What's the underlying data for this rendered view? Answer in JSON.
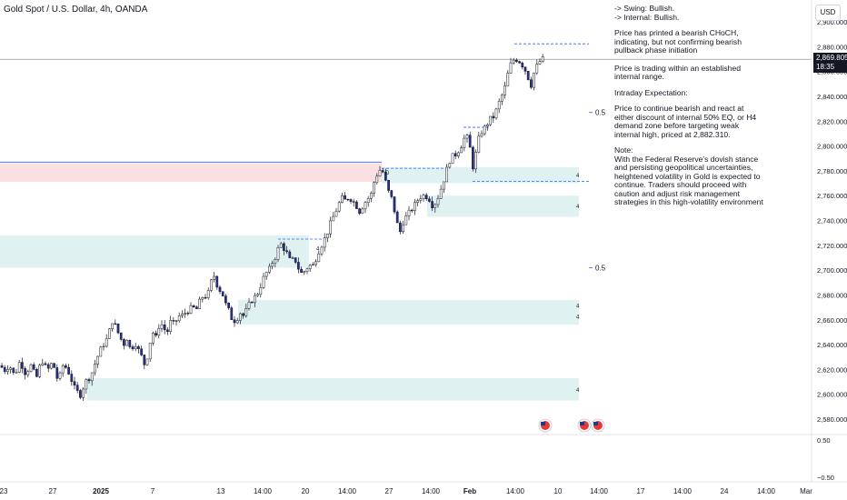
{
  "header": {
    "title": "Gold Spot / U.S. Dollar, 4h, OANDA",
    "currency_button": "USD"
  },
  "price_tag": {
    "price": "2,869.805",
    "countdown": "18:35"
  },
  "notes": {
    "swing": "-> Swing:  Bullish.",
    "internal": "-> Internal:  Bullish.",
    "p1": "Price has printed a bearish CHoCH, indicating, but not confirming bearish pullback phase initiation",
    "p2": "Price is trading within an established internal range.",
    "p3": "Intraday Expectation:",
    "p4": "Price to continue bearish and react at either discount of internal 50% EQ, or H4 demand zone before targeting weak internal high, priced at 2,882.310.",
    "p5_title": "Note:",
    "p5": "With the Federal Reserve's dovish stance and persisting geopolitical uncertainties, heightened volatility in Gold is expected to continue. Traders should proceed with caution and adjust risk management strategies in this high-volatility environment"
  },
  "chart_data": {
    "type": "candlestick",
    "title": "Gold Spot / U.S. Dollar, 4h, OANDA",
    "y_axis": {
      "min": 2572,
      "max": 2905,
      "ticks": [
        "2,900.000",
        "2,880.000",
        "2,860.000",
        "2,840.000",
        "2,820.000",
        "2,800.000",
        "2,780.000",
        "2,760.000",
        "2,740.000",
        "2,720.000",
        "2,700.000",
        "2,680.000",
        "2,660.000",
        "2,640.000",
        "2,620.000",
        "2,600.000",
        "2,580.000"
      ],
      "tick_values": [
        2900,
        2880,
        2860,
        2840,
        2820,
        2800,
        2780,
        2760,
        2740,
        2720,
        2700,
        2680,
        2660,
        2640,
        2620,
        2600,
        2580
      ]
    },
    "indicator_axis": {
      "ticks": [
        "0.50",
        "−0.50"
      ],
      "tick_values": [
        0.5,
        -0.5
      ]
    },
    "x_axis": {
      "labels": [
        "23",
        "27",
        "2025",
        "7",
        "13",
        "14:00",
        "20",
        "14:00",
        "27",
        "14:00",
        "Feb",
        "14:00",
        "10",
        "14:00",
        "17",
        "14:00",
        "24",
        "14:00",
        "Mar"
      ],
      "bold": [
        "2025",
        "Feb"
      ]
    },
    "close_trend": [
      [
        0,
        2623
      ],
      [
        6,
        2619
      ],
      [
        10,
        2624
      ],
      [
        16,
        2615
      ],
      [
        22,
        2627
      ],
      [
        28,
        2617
      ],
      [
        34,
        2623
      ],
      [
        40,
        2613
      ],
      [
        46,
        2628
      ],
      [
        52,
        2619
      ],
      [
        58,
        2626
      ],
      [
        64,
        2610
      ],
      [
        70,
        2625
      ],
      [
        76,
        2617
      ],
      [
        82,
        2605
      ],
      [
        88,
        2599
      ],
      [
        94,
        2610
      ],
      [
        100,
        2615
      ],
      [
        106,
        2628
      ],
      [
        112,
        2638
      ],
      [
        118,
        2645
      ],
      [
        124,
        2660
      ],
      [
        128,
        2653
      ],
      [
        132,
        2646
      ],
      [
        136,
        2640
      ],
      [
        140,
        2646
      ],
      [
        144,
        2634
      ],
      [
        148,
        2643
      ],
      [
        152,
        2636
      ],
      [
        156,
        2630
      ],
      [
        160,
        2622
      ],
      [
        164,
        2639
      ],
      [
        168,
        2650
      ],
      [
        172,
        2645
      ],
      [
        176,
        2659
      ],
      [
        180,
        2653
      ],
      [
        184,
        2650
      ],
      [
        188,
        2659
      ],
      [
        192,
        2656
      ],
      [
        196,
        2663
      ],
      [
        200,
        2663
      ],
      [
        204,
        2666
      ],
      [
        208,
        2668
      ],
      [
        212,
        2670
      ],
      [
        216,
        2668
      ],
      [
        220,
        2675
      ],
      [
        224,
        2680
      ],
      [
        228,
        2678
      ],
      [
        232,
        2690
      ],
      [
        236,
        2696
      ],
      [
        240,
        2685
      ],
      [
        244,
        2683
      ],
      [
        248,
        2673
      ],
      [
        252,
        2667
      ],
      [
        256,
        2659
      ],
      [
        260,
        2660
      ],
      [
        264,
        2666
      ],
      [
        268,
        2663
      ],
      [
        272,
        2669
      ],
      [
        276,
        2675
      ],
      [
        280,
        2678
      ],
      [
        284,
        2682
      ],
      [
        288,
        2690
      ],
      [
        292,
        2697
      ],
      [
        296,
        2700
      ],
      [
        300,
        2707
      ],
      [
        304,
        2712
      ],
      [
        308,
        2722
      ],
      [
        312,
        2718
      ],
      [
        316,
        2713
      ],
      [
        320,
        2706
      ],
      [
        324,
        2710
      ],
      [
        328,
        2702
      ],
      [
        332,
        2697
      ],
      [
        336,
        2700
      ],
      [
        340,
        2704
      ],
      [
        344,
        2703
      ],
      [
        348,
        2710
      ],
      [
        352,
        2718
      ],
      [
        356,
        2723
      ],
      [
        360,
        2730
      ],
      [
        364,
        2738
      ],
      [
        368,
        2745
      ],
      [
        372,
        2752
      ],
      [
        376,
        2758
      ],
      [
        380,
        2756
      ],
      [
        384,
        2759
      ],
      [
        388,
        2756
      ],
      [
        392,
        2752
      ],
      [
        396,
        2747
      ],
      [
        400,
        2753
      ],
      [
        404,
        2757
      ],
      [
        408,
        2760
      ],
      [
        412,
        2772
      ],
      [
        416,
        2779
      ],
      [
        420,
        2782
      ],
      [
        424,
        2772
      ],
      [
        428,
        2762
      ],
      [
        432,
        2756
      ],
      [
        436,
        2740
      ],
      [
        440,
        2730
      ],
      [
        444,
        2740
      ],
      [
        448,
        2744
      ],
      [
        452,
        2748
      ],
      [
        456,
        2752
      ],
      [
        460,
        2757
      ],
      [
        464,
        2760
      ],
      [
        468,
        2760
      ],
      [
        472,
        2758
      ],
      [
        476,
        2752
      ],
      [
        480,
        2755
      ],
      [
        484,
        2763
      ],
      [
        488,
        2772
      ],
      [
        492,
        2782
      ],
      [
        496,
        2791
      ],
      [
        500,
        2792
      ],
      [
        504,
        2796
      ],
      [
        508,
        2801
      ],
      [
        512,
        2808
      ],
      [
        516,
        2805
      ],
      [
        520,
        2782
      ],
      [
        524,
        2795
      ],
      [
        528,
        2810
      ],
      [
        532,
        2813
      ],
      [
        536,
        2818
      ],
      [
        540,
        2822
      ],
      [
        544,
        2824
      ],
      [
        548,
        2833
      ],
      [
        552,
        2840
      ],
      [
        556,
        2848
      ],
      [
        560,
        2862
      ],
      [
        564,
        2869
      ],
      [
        568,
        2870
      ],
      [
        572,
        2868
      ],
      [
        576,
        2864
      ],
      [
        580,
        2858
      ],
      [
        584,
        2848
      ],
      [
        588,
        2860
      ],
      [
        592,
        2866
      ],
      [
        596,
        2870
      ],
      [
        600,
        2869.8
      ]
    ],
    "demand_zones": [
      {
        "y1": 2728,
        "y2": 2702,
        "x1": 0,
        "x2": 340,
        "label": "4"
      },
      {
        "y1": 2783,
        "y2": 2770,
        "x1": 420,
        "x2": 637,
        "label": "4"
      },
      {
        "y1": 2760,
        "y2": 2743,
        "x1": 470,
        "x2": 637,
        "label": "4"
      },
      {
        "y1": 2676,
        "y2": 2668,
        "x1": 262,
        "x2": 637,
        "label": "4"
      },
      {
        "y1": 2668,
        "y2": 2656,
        "x1": 262,
        "x2": 637,
        "label": "4"
      },
      {
        "y1": 2613,
        "y2": 2595,
        "x1": 96,
        "x2": 637,
        "label": "4"
      }
    ],
    "supply_zone": {
      "y1": 2786,
      "y2": 2771,
      "x1": 0,
      "x2": 420
    },
    "levels": [
      {
        "y": 2882.3,
        "x1": 566,
        "x2": 648,
        "style": "dashed"
      },
      {
        "y": 2787,
        "x1": 0,
        "x2": 420,
        "style": "solid"
      },
      {
        "y": 2782,
        "x1": 420,
        "x2": 493,
        "style": "dashed"
      },
      {
        "y": 2771.5,
        "x1": 520,
        "x2": 648,
        "style": "dashed"
      },
      {
        "y": 2725,
        "x1": 306,
        "x2": 356,
        "style": "dashed"
      },
      {
        "y": 2815,
        "x1": 510,
        "x2": 540,
        "style": "dashed"
      }
    ],
    "eq_labels": [
      {
        "text": "0.5",
        "y": 2827
      },
      {
        "text": "0.5",
        "y": 2702
      }
    ],
    "markers": [
      {
        "text": "D",
        "x": 424,
        "y": 2779
      },
      {
        "text": "4",
        "x": 634,
        "y": 2777
      },
      {
        "text": "4",
        "x": 634,
        "y": 2752
      },
      {
        "text": "4",
        "x": 634,
        "y": 2672
      },
      {
        "text": "4",
        "x": 634,
        "y": 2663
      },
      {
        "text": "4",
        "x": 634,
        "y": 2604
      },
      {
        "text": "4",
        "x": 348,
        "y": 2718
      }
    ],
    "events": [
      {
        "x": 600,
        "label": "US"
      },
      {
        "x": 643,
        "label": "US"
      },
      {
        "x": 658,
        "label": "US"
      }
    ],
    "indicator": {
      "zero_value": 0
    },
    "colors": {
      "bull": "#ffffff",
      "bear": "#2a2e8c",
      "wick": "#131722",
      "demand": "#daeef0",
      "supply": "#fbe0e2",
      "level": "#2962ff",
      "grid": "#e0e3eb"
    }
  }
}
